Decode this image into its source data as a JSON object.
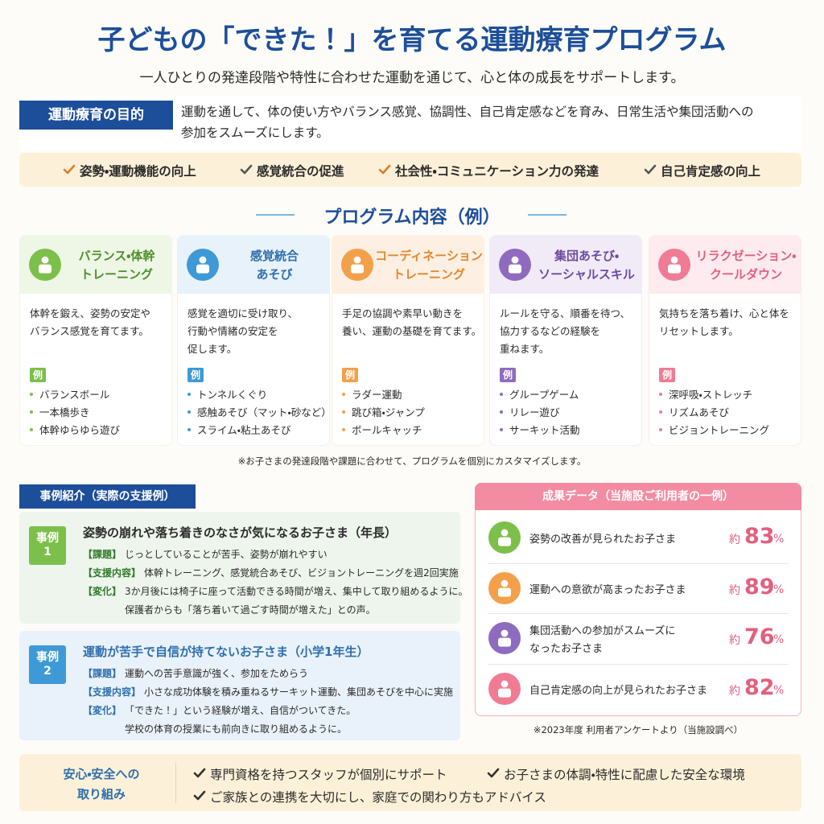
{
  "header": {
    "title": "子どもの「できた！」を育てる運動療育プログラム",
    "subtitle": "一人ひとりの発達段階や特性に合わせた運動を通じて、心と体の成長をサポートします。"
  },
  "purpose": {
    "label": "運動療育の目的",
    "text": [
      "運動を通して、体の使い方やバランス感覚、協調性、自己肯定感などを育み、日常生活や集団活動への",
      "参加をスムーズにします。"
    ]
  },
  "goals": [
    "姿勢・運動機能の向上",
    "感覚統合の促進",
    "社会性・コミュニケーション力の発達",
    "自己肯定感の向上"
  ],
  "programs": {
    "title": "プログラム内容（例）",
    "example_label": "例",
    "items": [
      {
        "title": [
          "バランス・体幹",
          "トレーニング"
        ],
        "desc": [
          "体幹を鍛え、姿勢の安定や",
          "バランス感覚を育てます。"
        ],
        "examples": [
          "バランスボール",
          "一本橋歩き",
          "体幹ゆらゆら遊び"
        ]
      },
      {
        "title": [
          "感覚統合",
          "あそび"
        ],
        "desc": [
          "感覚を適切に受け取り、",
          "行動や情緒の安定を",
          "促します。"
        ],
        "examples": [
          "トンネルくぐり",
          "感触あそび（マット・砂など）",
          "スライム・粘土あそび"
        ]
      },
      {
        "title": [
          "コーディネーション",
          "トレーニング"
        ],
        "desc": [
          "手足の協調や素早い動きを",
          "養い、運動の基礎を育てます。"
        ],
        "examples": [
          "ラダー運動",
          "跳び箱・ジャンプ",
          "ボールキャッチ"
        ]
      },
      {
        "title": [
          "集団あそび・",
          "ソーシャルスキル"
        ],
        "desc": [
          "ルールを守る、順番を待つ、",
          "協力するなどの経験を",
          "重ねます。"
        ],
        "examples": [
          "グループゲーム",
          "リレー遊び",
          "サーキット活動"
        ]
      },
      {
        "title": [
          "リラクゼーション・",
          "クールダウン"
        ],
        "desc": [
          "気持ちを落ち着け、心と体を",
          "リセットします。"
        ],
        "examples": [
          "深呼吸・ストレッチ",
          "リズムあそび",
          "ビジョントレーニング"
        ]
      }
    ],
    "note": "※お子さまの発達段階や課題に合わせて、プログラムを個別にカスタマイズします。"
  },
  "cases": {
    "title": "事例紹介（実際の支援例）",
    "items": [
      {
        "badge": [
          "事例",
          "1"
        ],
        "heading": "姿勢の崩れや落ち着きのなさが気になるお子さま（年長）",
        "rows": [
          {
            "label": "【課題】",
            "text": [
              "じっとしていることが苦手、姿勢が崩れやすい"
            ]
          },
          {
            "label": "【支援内容】",
            "text": [
              "体幹トレーニング、感覚統合あそび、ビジョントレーニングを週2回実施"
            ]
          },
          {
            "label": "【変化】",
            "text": [
              "3か月後には椅子に座って活動できる時間が増え、集中して取り組めるように。",
              "保護者からも「落ち着いて過ごす時間が増えた」との声。"
            ]
          }
        ]
      },
      {
        "badge": [
          "事例",
          "2"
        ],
        "heading": "運動が苦手で自信が持てないお子さま（小学1年生）",
        "rows": [
          {
            "label": "【課題】",
            "text": [
              "運動への苦手意識が強く、参加をためらう"
            ]
          },
          {
            "label": "【支援内容】",
            "text": [
              "小さな成功体験を積み重ねるサーキット運動、集団あそびを中心に実施"
            ]
          },
          {
            "label": "【変化】",
            "text": [
              "「できた！」という経験が増え、自信がついてきた。",
              "学校の体育の授業にも前向きに取り組めるように。"
            ]
          }
        ]
      }
    ]
  },
  "results": {
    "title": "成果データ（当施設ご利用者の一例）",
    "items": [
      {
        "label": [
          "姿勢の改善が見られたお子さま"
        ],
        "approx": "約",
        "value": 83,
        "unit": "%"
      },
      {
        "label": [
          "運動への意欲が高まったお子さま"
        ],
        "approx": "約",
        "value": 89,
        "unit": "%"
      },
      {
        "label": [
          "集団活動への参加がスムーズに",
          "なったお子さま"
        ],
        "approx": "約",
        "value": 76,
        "unit": "%"
      },
      {
        "label": [
          "自己肯定感の向上が見られたお子さま"
        ],
        "approx": "約",
        "value": 82,
        "unit": "%"
      }
    ],
    "note": "※2023年度 利用者アンケートより（当施設調べ）"
  },
  "safety": {
    "label": [
      "安心・安全への",
      "取り組み"
    ],
    "items": [
      "専門資格を持つスタッフが個別にサポート",
      "お子さまの体調・特性に配慮した安全な環境",
      "ご家族との連携を大切にし、家庭での関わり方もアドバイス"
    ]
  }
}
